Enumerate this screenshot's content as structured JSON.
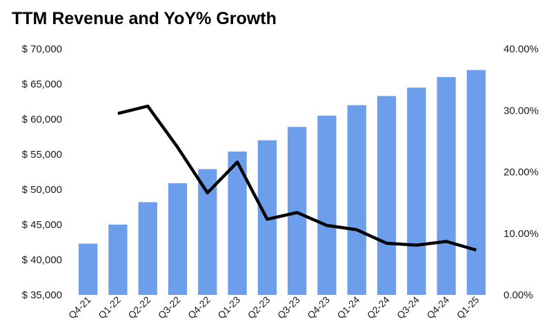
{
  "chart_data": {
    "type": "bar",
    "title": "TTM Revenue and YoY% Growth",
    "xlabel": "",
    "ylabel": "",
    "categories": [
      "Q4-21",
      "Q1-22",
      "Q2-22",
      "Q3-22",
      "Q4-22",
      "Q1-23",
      "Q2-23",
      "Q3-23",
      "Q4-23",
      "Q1-24",
      "Q2-24",
      "Q3-24",
      "Q4-24",
      "Q1-25"
    ],
    "series": [
      {
        "type": "bar",
        "axis": "left",
        "color": "#6d9eeb",
        "values": [
          42300,
          45000,
          48200,
          50900,
          52900,
          55400,
          57000,
          58900,
          60500,
          62000,
          63300,
          64500,
          66000,
          67000
        ]
      },
      {
        "type": "line",
        "axis": "right",
        "color": "#000000",
        "values": [
          null,
          29.5,
          30.7,
          24.0,
          16.6,
          21.6,
          12.3,
          13.4,
          11.3,
          10.6,
          8.4,
          8.1,
          8.7,
          7.3
        ]
      }
    ],
    "ylim_left": [
      35000,
      70000
    ],
    "ylim_right": [
      0,
      40
    ],
    "yticks_left": [
      "$ 35,000",
      "$ 40,000",
      "$ 45,000",
      "$ 50,000",
      "$ 55,000",
      "$ 60,000",
      "$ 65,000",
      "$ 70,000"
    ],
    "yticks_right": [
      "0.00%",
      "10.00%",
      "20.00%",
      "30.00%",
      "40.00%"
    ],
    "grid": false,
    "legend": "none"
  }
}
